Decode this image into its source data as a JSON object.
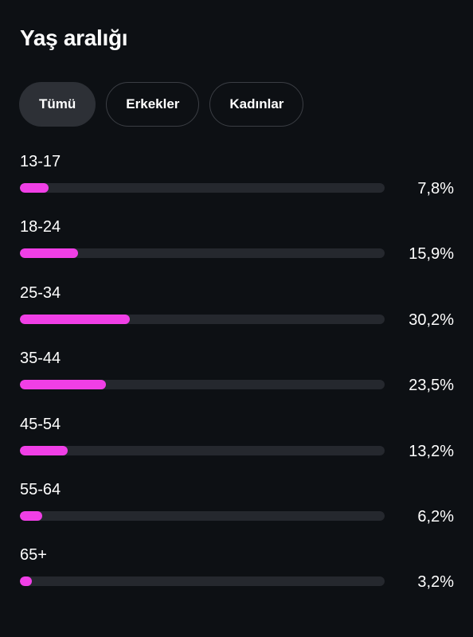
{
  "header": {
    "title": "Yaş aralığı"
  },
  "filters": [
    {
      "label": "Tümü",
      "active": true
    },
    {
      "label": "Erkekler",
      "active": false
    },
    {
      "label": "Kadınlar",
      "active": false
    }
  ],
  "colors": {
    "accent": "#f03fe6",
    "track": "#25282e",
    "background": "#0d1014"
  },
  "rows": [
    {
      "label": "13-17",
      "percent_text": "7,8%",
      "value": 7.8
    },
    {
      "label": "18-24",
      "percent_text": "15,9%",
      "value": 15.9
    },
    {
      "label": "25-34",
      "percent_text": "30,2%",
      "value": 30.2
    },
    {
      "label": "35-44",
      "percent_text": "23,5%",
      "value": 23.5
    },
    {
      "label": "45-54",
      "percent_text": "13,2%",
      "value": 13.2
    },
    {
      "label": "55-64",
      "percent_text": "6,2%",
      "value": 6.2
    },
    {
      "label": "65+",
      "percent_text": "3,2%",
      "value": 3.2
    }
  ]
}
